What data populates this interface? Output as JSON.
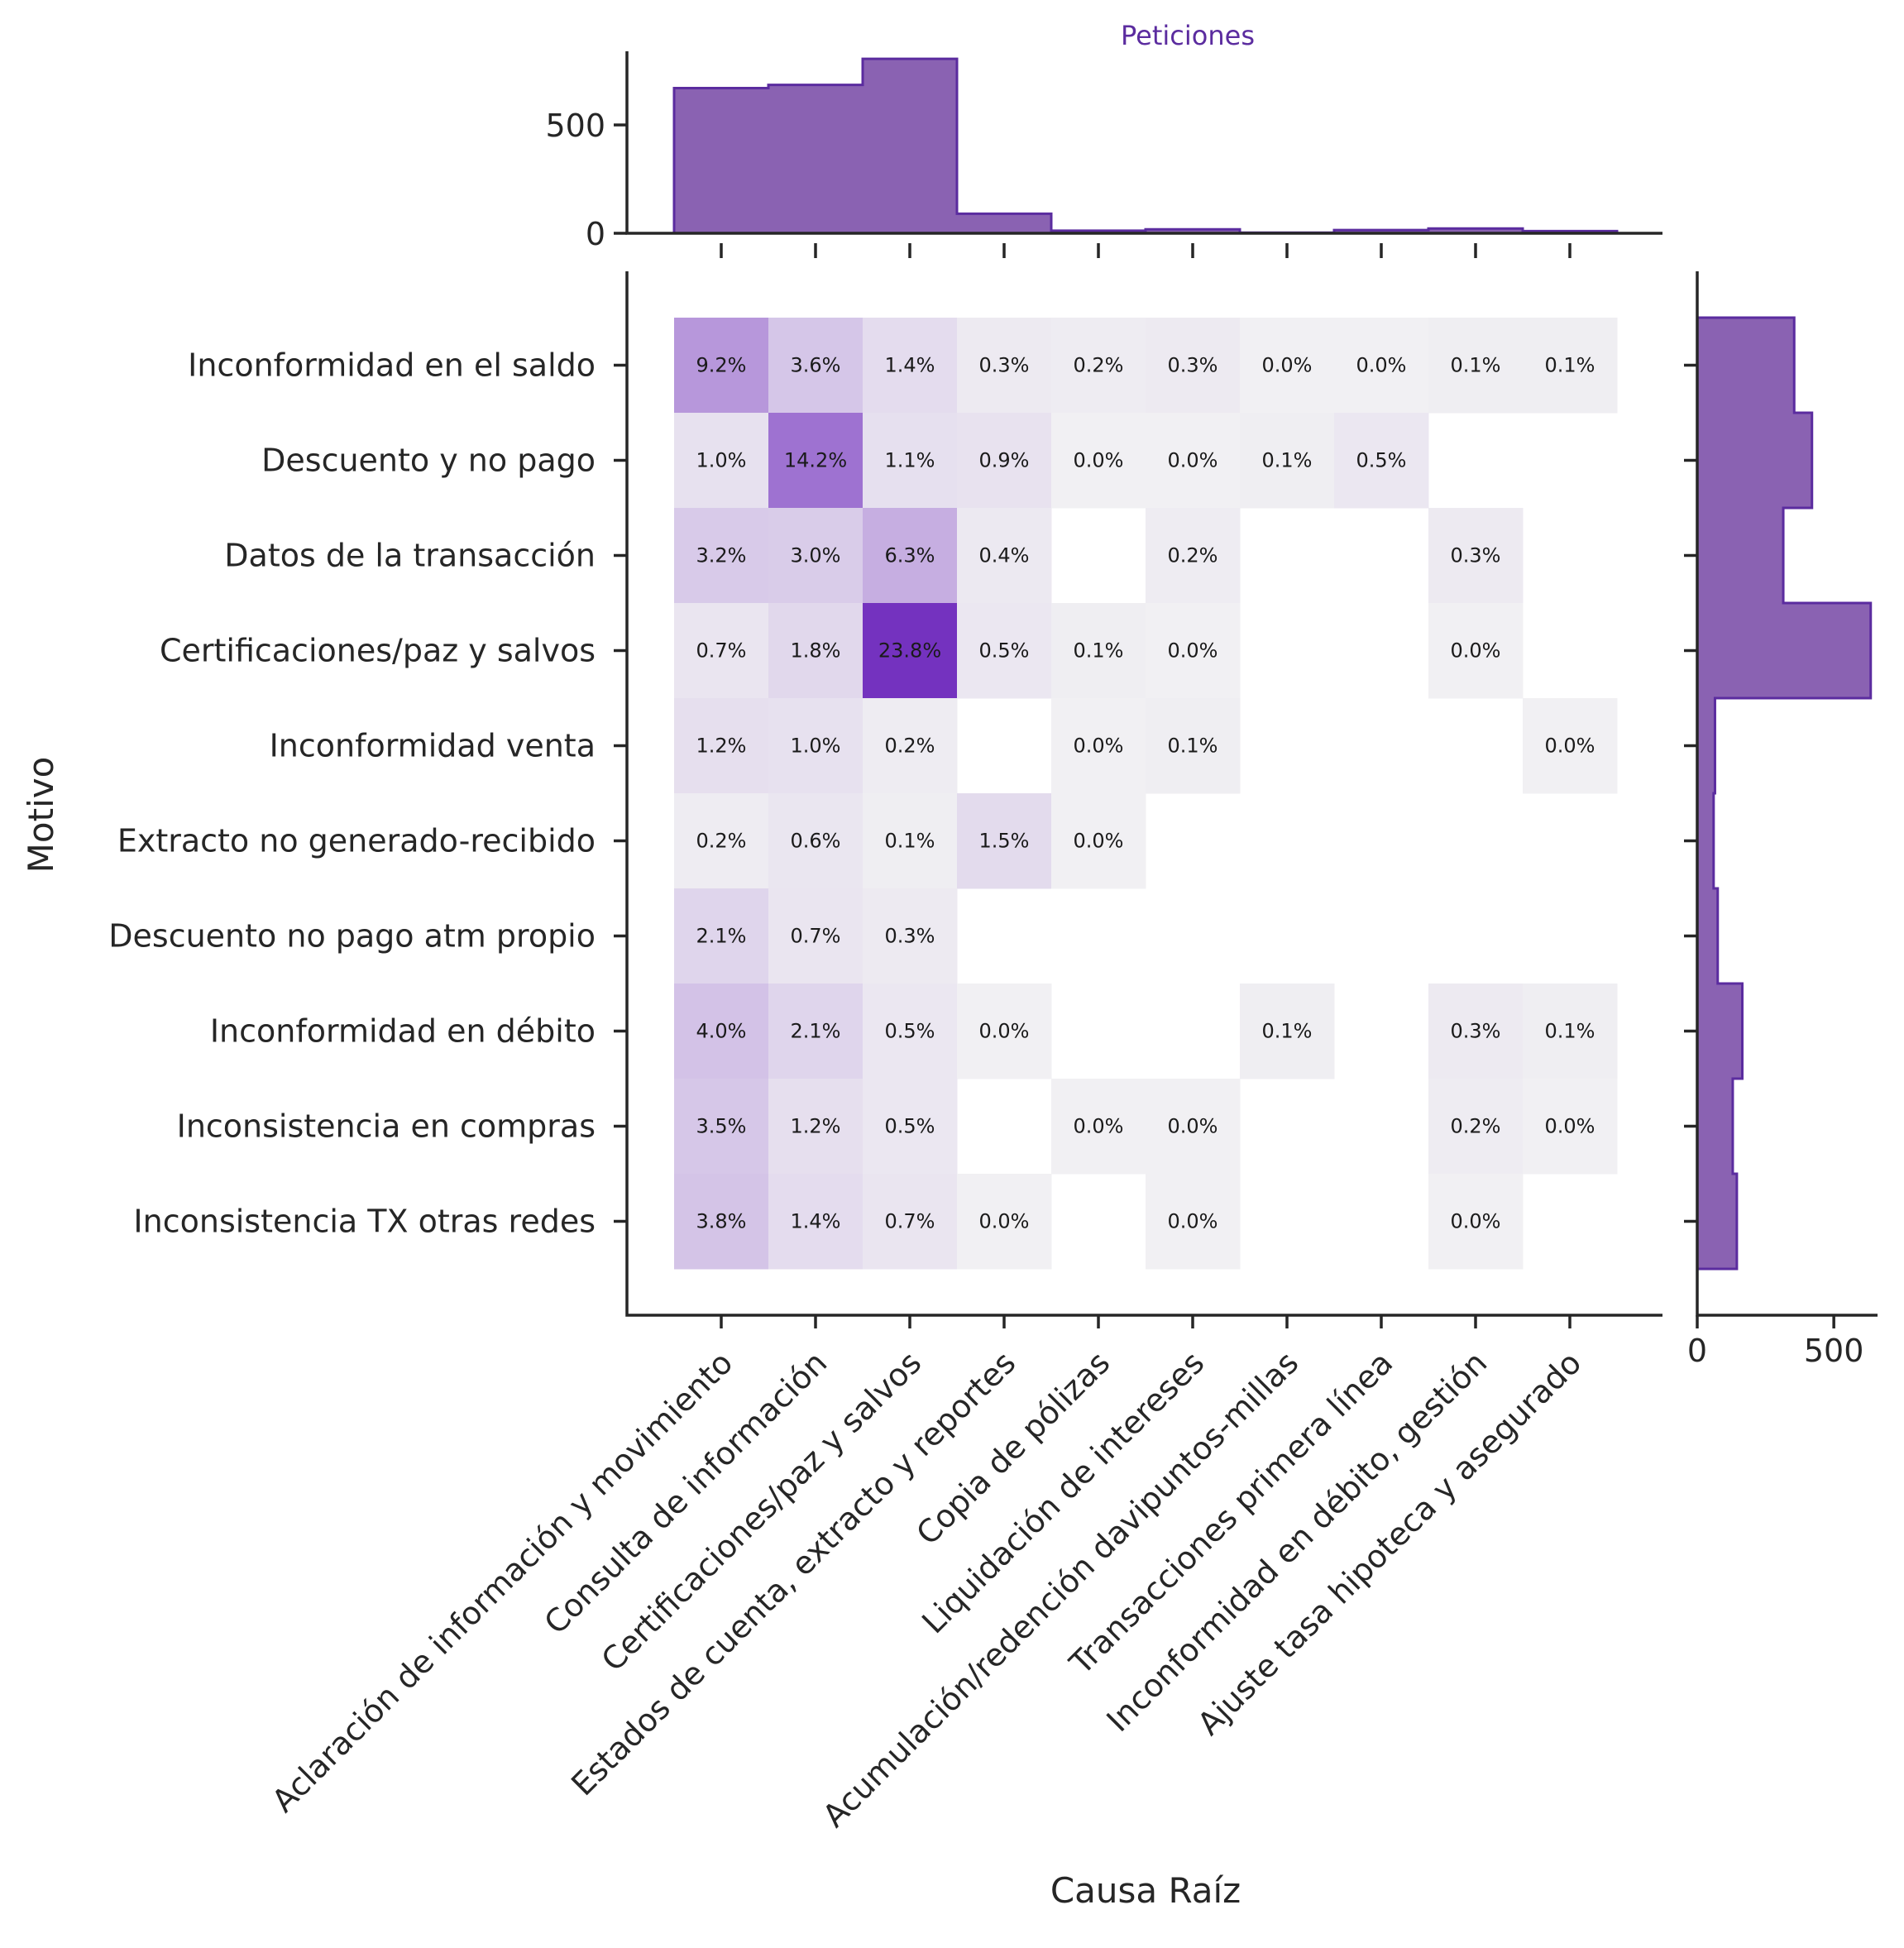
{
  "chart_data": {
    "type": "heatmap",
    "title": "Peticiones",
    "xlabel": "Causa Raíz",
    "ylabel": "Motivo",
    "x_categories": [
      "Aclaración de información y movimiento",
      "Consulta de información",
      "Certificaciones/paz y salvos",
      "Estados de cuenta, extracto y reportes",
      "Copia de pólizas",
      "Liquidación de intereses",
      "Acumulación/redención davipuntos-millas",
      "Transacciones primera línea",
      "Inconformidad en débito, gestión",
      "Ajuste tasa hipoteca y asegurado"
    ],
    "y_categories": [
      "Inconformidad en el saldo",
      "Descuento y no pago",
      "Datos de la transacción",
      "Certificaciones/paz y salvos",
      "Inconformidad venta",
      "Extracto no generado-recibido",
      "Descuento no pago atm propio",
      "Inconformidad en débito",
      "Inconsistencia en compras",
      "Inconsistencia TX otras redes"
    ],
    "cells": [
      [
        "9.2%",
        "3.6%",
        "1.4%",
        "0.3%",
        "0.2%",
        "0.3%",
        "0.0%",
        "0.0%",
        "0.1%",
        "0.1%"
      ],
      [
        "1.0%",
        "14.2%",
        "1.1%",
        "0.9%",
        "0.0%",
        "0.0%",
        "0.1%",
        "0.5%",
        null,
        null
      ],
      [
        "3.2%",
        "3.0%",
        "6.3%",
        "0.4%",
        null,
        "0.2%",
        null,
        null,
        "0.3%",
        null
      ],
      [
        "0.7%",
        "1.8%",
        "23.8%",
        "0.5%",
        "0.1%",
        "0.0%",
        null,
        null,
        "0.0%",
        null
      ],
      [
        "1.2%",
        "1.0%",
        "0.2%",
        null,
        "0.0%",
        "0.1%",
        null,
        null,
        null,
        "0.0%"
      ],
      [
        "0.2%",
        "0.6%",
        "0.1%",
        "1.5%",
        "0.0%",
        null,
        null,
        null,
        null,
        null
      ],
      [
        "2.1%",
        "0.7%",
        "0.3%",
        null,
        null,
        null,
        null,
        null,
        null,
        null
      ],
      [
        "4.0%",
        "2.1%",
        "0.5%",
        "0.0%",
        null,
        null,
        "0.1%",
        null,
        "0.3%",
        "0.1%"
      ],
      [
        "3.5%",
        "1.2%",
        "0.5%",
        null,
        "0.0%",
        "0.0%",
        null,
        null,
        "0.2%",
        "0.0%"
      ],
      [
        "3.8%",
        "1.4%",
        "0.7%",
        "0.0%",
        null,
        "0.0%",
        null,
        null,
        "0.0%",
        null
      ]
    ],
    "marginal_x": {
      "values": [
        670,
        685,
        805,
        90,
        12,
        18,
        3,
        15,
        22,
        10
      ],
      "yticks": [
        0,
        500
      ],
      "ylim": [
        0,
        840
      ]
    },
    "marginal_y": {
      "values": [
        355,
        420,
        315,
        635,
        65,
        60,
        75,
        165,
        130,
        145
      ],
      "xticks": [
        0,
        500
      ],
      "xlim": [
        0,
        660
      ]
    },
    "colors": {
      "accent": "#5b2c9f",
      "hist_fill": "#8a62b2",
      "hist_edge": "#5b2c9f",
      "cell_base": "#f1f0f3",
      "cell_max": "#7432bf"
    }
  }
}
